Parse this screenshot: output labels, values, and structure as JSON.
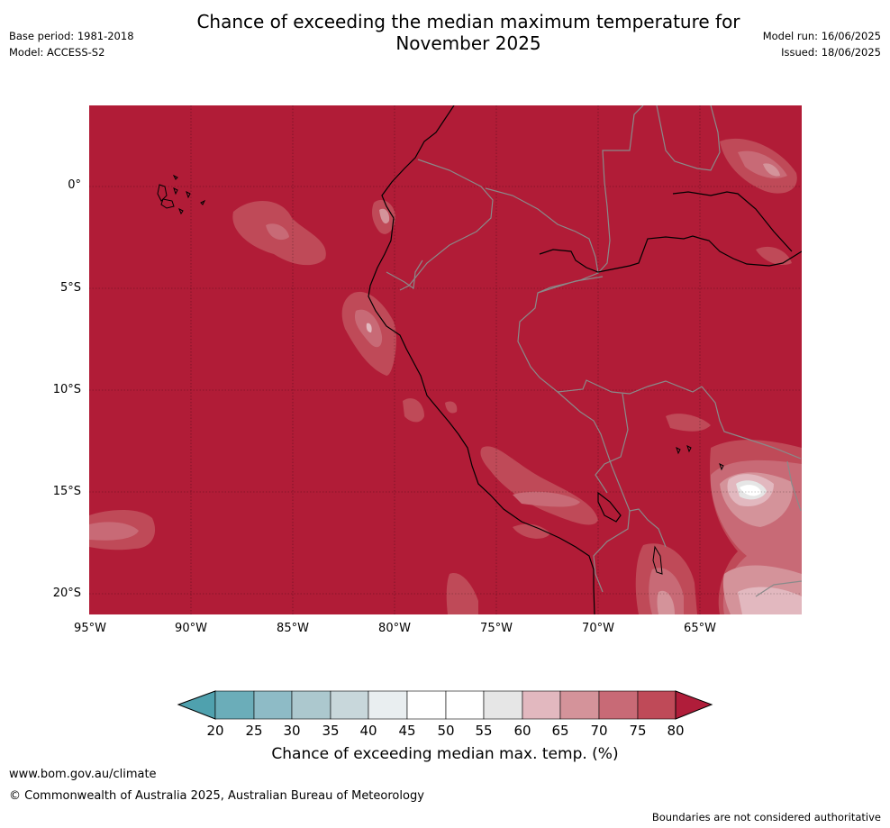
{
  "title_line1": "Chance of exceeding the median maximum temperature for",
  "title_line2": "November 2025",
  "meta_left": {
    "base_period": "Base period: 1981-2018",
    "model": "Model: ACCESS-S2"
  },
  "meta_right": {
    "model_run": "Model run: 16/06/2025",
    "issued": "Issued: 18/06/2025"
  },
  "map": {
    "latitude_labels": [
      "0°",
      "5°S",
      "10°S",
      "15°S",
      "20°S"
    ],
    "longitude_labels": [
      "95°W",
      "90°W",
      "85°W",
      "80°W",
      "75°W",
      "70°W",
      "65°W"
    ],
    "dominant_category": "80+",
    "base_color": "#b11c37"
  },
  "colorbar": {
    "ticks": [
      "20",
      "25",
      "30",
      "35",
      "40",
      "45",
      "50",
      "55",
      "60",
      "65",
      "70",
      "75",
      "80"
    ],
    "colors": [
      "#4fa1ae",
      "#6badb9",
      "#8ebbc6",
      "#acc8ce",
      "#c8d7db",
      "#e9eef0",
      "#ffffff",
      "#ffffff",
      "#e6e6e6",
      "#e2b8bf",
      "#d4939a",
      "#c86a76",
      "#bf4a58",
      "#b01d3a"
    ],
    "title": "Chance of exceeding median max. temp. (%)"
  },
  "footer": {
    "website": "www.bom.gov.au/climate",
    "copyright": "© Commonwealth of Australia 2025, Australian Bureau of Meteorology",
    "disclaimer": "Boundaries are not considered authoritative"
  }
}
